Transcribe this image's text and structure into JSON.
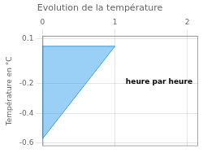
{
  "chart_data": {
    "type": "polygon",
    "title": "Evolution de la température",
    "y_label": "Température en °C",
    "x": [
      0,
      0,
      1
    ],
    "values": [
      -0.57,
      0.05,
      0.05
    ],
    "xlim": [
      0,
      2.15
    ],
    "xticks": [
      0,
      1,
      2
    ],
    "ylim": [
      -0.62,
      0.12
    ],
    "yticks": [
      0.1,
      -0.2,
      -0.4,
      -0.6
    ],
    "grid": true,
    "annotations": [
      {
        "text": "heure par heure",
        "x": 1.15,
        "y": -0.19
      }
    ]
  }
}
